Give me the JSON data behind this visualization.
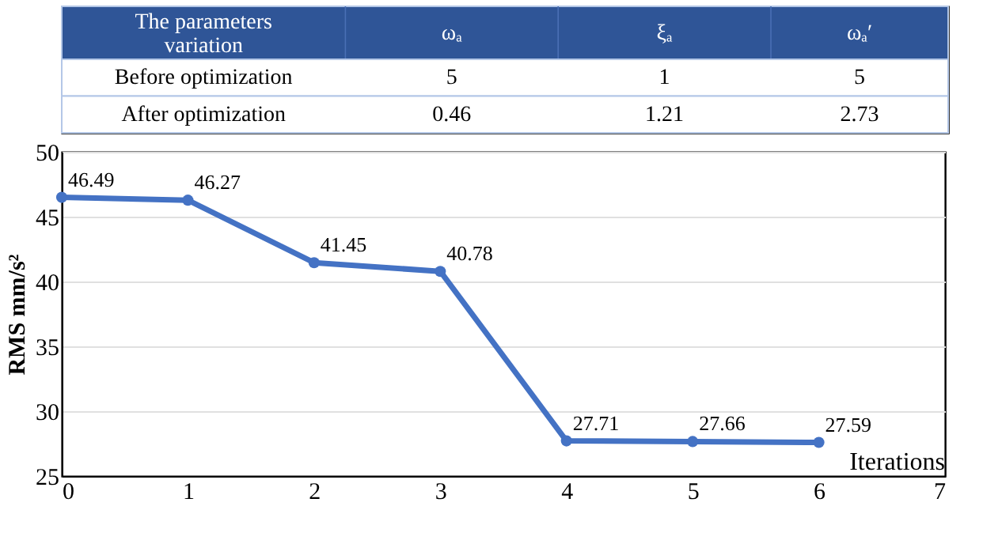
{
  "chart_data": {
    "type": "line",
    "x": [
      0,
      1,
      2,
      3,
      4,
      5,
      6
    ],
    "series": [
      {
        "color": "#4472c4",
        "values": [
          46.49,
          46.27,
          41.45,
          40.78,
          27.71,
          27.66,
          27.59
        ]
      }
    ],
    "xlim": [
      0,
      7
    ],
    "xticks": [
      0,
      1,
      2,
      3,
      4,
      5,
      6,
      7
    ],
    "ylim": [
      25,
      50
    ],
    "yticks": [
      25,
      30,
      35,
      40,
      45,
      50
    ],
    "xlabel": "Iterations",
    "ylabel": "RMS mm/s²",
    "grid": "y",
    "marker": "circle",
    "line_style": "solid",
    "data_labels": true,
    "annotations": [
      "The parameters\nvariation",
      "ωₐ",
      "ξₐ",
      "ωₐ′",
      "Before optimization",
      "5",
      "1",
      "5",
      "After optimization",
      "0.46",
      "1.21",
      "2.73"
    ]
  }
}
